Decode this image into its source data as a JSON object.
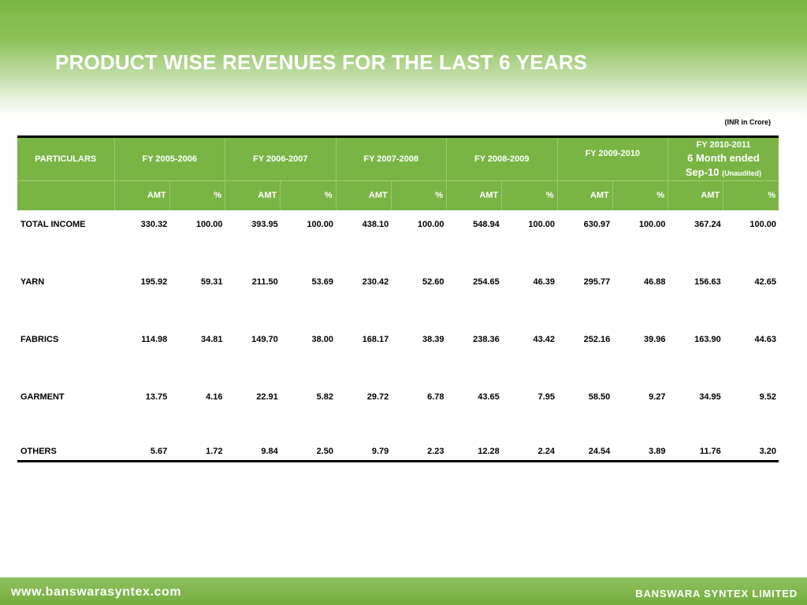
{
  "header": {
    "title": "PRODUCT WISE REVENUES FOR THE LAST 6 YEARS",
    "unit_note": "(INR in Crore)"
  },
  "table": {
    "particulars_label": "PARTICULARS",
    "years": [
      {
        "label": "FY 2005-2006"
      },
      {
        "label": "FY 2006-2007"
      },
      {
        "label": "FY 2007-2008"
      },
      {
        "label": "FY 2008-2009"
      },
      {
        "label": "FY 2009-2010"
      },
      {
        "label": "FY 2010-2011",
        "line2": "6 Month ended",
        "line3": "Sep-10",
        "note": "(Unaudited)"
      }
    ],
    "sub_amt": "AMT",
    "sub_pct": "%",
    "rows": [
      {
        "label": "TOTAL INCOME",
        "values": [
          "330.32",
          "100.00",
          "393.95",
          "100.00",
          "438.10",
          "100.00",
          "548.94",
          "100.00",
          "630.97",
          "100.00",
          "367.24",
          "100.00"
        ]
      },
      {
        "label": "YARN",
        "values": [
          "195.92",
          "59.31",
          "211.50",
          "53.69",
          "230.42",
          "52.60",
          "254.65",
          "46.39",
          "295.77",
          "46.88",
          "156.63",
          "42.65"
        ]
      },
      {
        "label": "FABRICS",
        "values": [
          "114.98",
          "34.81",
          "149.70",
          "38.00",
          "168.17",
          "38.39",
          "238.36",
          "43.42",
          "252.16",
          "39.96",
          "163.90",
          "44.63"
        ]
      },
      {
        "label": "GARMENT",
        "values": [
          "13.75",
          "4.16",
          "22.91",
          "5.82",
          "29.72",
          "6.78",
          "43.65",
          "7.95",
          "58.50",
          "9.27",
          "34.95",
          "9.52"
        ]
      },
      {
        "label": "OTHERS",
        "values": [
          "5.67",
          "1.72",
          "9.84",
          "2.50",
          "9.79",
          "2.23",
          "12.28",
          "2.24",
          "24.54",
          "3.89",
          "11.76",
          "3.20"
        ]
      }
    ]
  },
  "footer": {
    "url": "www.banswarasyntex.com",
    "company": "BANSWARA SYNTEX LIMITED"
  },
  "colors": {
    "accent_green": "#7ab444",
    "text_white": "#ffffff"
  }
}
